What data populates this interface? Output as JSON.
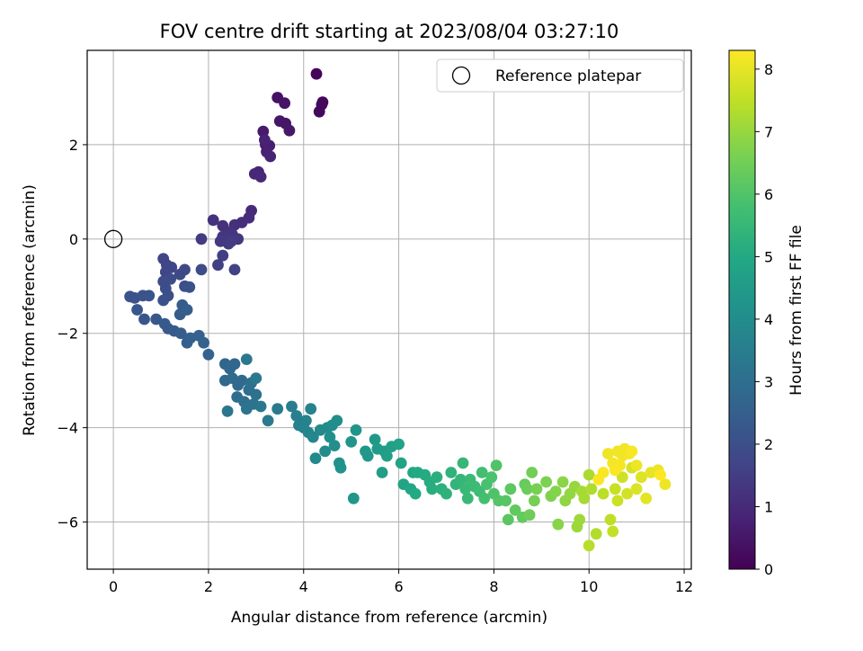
{
  "chart_data": {
    "type": "scatter",
    "title": "FOV centre drift starting at 2023/08/04 03:27:10",
    "xlabel": "Angular distance from reference (arcmin)",
    "ylabel": "Rotation from reference (arcmin)",
    "xlim": [
      -0.55,
      12.15
    ],
    "ylim": [
      -7.0,
      4.0
    ],
    "xticks": [
      0,
      2,
      4,
      6,
      8,
      10,
      12
    ],
    "yticks": [
      -6,
      -4,
      -2,
      0,
      2
    ],
    "grid": true,
    "legend": {
      "placement": "top-right",
      "entries": [
        "Reference platepar"
      ]
    },
    "reference_point": {
      "x": 0,
      "y": 0,
      "label": "Reference platepar"
    },
    "colorbar": {
      "label": "Hours from first FF file",
      "range": [
        0,
        8.3
      ],
      "ticks": [
        0,
        1,
        2,
        3,
        4,
        5,
        6,
        7,
        8
      ],
      "colormap": "viridis"
    },
    "points": [
      [
        4.27,
        3.5,
        0.1
      ],
      [
        4.4,
        2.9,
        0.15
      ],
      [
        4.33,
        2.7,
        0.2
      ],
      [
        4.38,
        2.85,
        0.2
      ],
      [
        3.45,
        3.0,
        0.4
      ],
      [
        3.6,
        2.88,
        0.45
      ],
      [
        3.5,
        2.5,
        0.5
      ],
      [
        3.62,
        2.45,
        0.5
      ],
      [
        3.7,
        2.3,
        0.55
      ],
      [
        3.15,
        2.28,
        0.6
      ],
      [
        3.2,
        2.0,
        0.65
      ],
      [
        3.28,
        1.98,
        0.7
      ],
      [
        3.22,
        1.85,
        0.75
      ],
      [
        3.3,
        1.75,
        0.8
      ],
      [
        3.18,
        2.1,
        0.8
      ],
      [
        3.05,
        1.42,
        0.85
      ],
      [
        2.97,
        1.38,
        0.9
      ],
      [
        3.1,
        1.32,
        0.95
      ],
      [
        2.9,
        0.6,
        1.0
      ],
      [
        2.85,
        0.45,
        1.05
      ],
      [
        2.7,
        0.35,
        1.1
      ],
      [
        2.55,
        0.3,
        1.15
      ],
      [
        2.3,
        0.28,
        1.2
      ],
      [
        2.1,
        0.4,
        1.2
      ],
      [
        2.45,
        0.15,
        1.25
      ],
      [
        2.3,
        0.05,
        1.3
      ],
      [
        2.5,
        0.1,
        1.3
      ],
      [
        2.62,
        0.0,
        1.35
      ],
      [
        2.25,
        -0.05,
        1.4
      ],
      [
        2.42,
        -0.1,
        1.4
      ],
      [
        1.85,
        0.0,
        1.45
      ],
      [
        2.48,
        -0.05,
        1.45
      ],
      [
        2.3,
        -0.35,
        1.5
      ],
      [
        2.2,
        -0.55,
        1.55
      ],
      [
        2.55,
        -0.65,
        1.6
      ],
      [
        1.05,
        -0.42,
        1.65
      ],
      [
        1.12,
        -0.55,
        1.7
      ],
      [
        1.22,
        -0.6,
        1.75
      ],
      [
        1.1,
        -0.7,
        1.75
      ],
      [
        1.5,
        -0.65,
        1.8
      ],
      [
        1.4,
        -0.75,
        1.85
      ],
      [
        1.2,
        -0.85,
        1.9
      ],
      [
        1.05,
        -0.9,
        1.9
      ],
      [
        1.85,
        -0.65,
        1.95
      ],
      [
        1.1,
        -1.05,
        1.95
      ],
      [
        1.5,
        -1.0,
        2.0
      ],
      [
        1.15,
        -1.2,
        2.0
      ],
      [
        1.05,
        -1.3,
        2.05
      ],
      [
        1.6,
        -1.02,
        2.05
      ],
      [
        0.35,
        -1.22,
        2.1
      ],
      [
        0.45,
        -1.25,
        2.1
      ],
      [
        0.62,
        -1.2,
        2.15
      ],
      [
        0.75,
        -1.2,
        2.15
      ],
      [
        0.5,
        -1.5,
        2.2
      ],
      [
        0.65,
        -1.7,
        2.2
      ],
      [
        0.9,
        -1.7,
        2.25
      ],
      [
        1.08,
        -1.8,
        2.3
      ],
      [
        1.15,
        -1.9,
        2.3
      ],
      [
        1.28,
        -1.95,
        2.35
      ],
      [
        1.4,
        -1.6,
        2.4
      ],
      [
        1.45,
        -1.4,
        2.4
      ],
      [
        1.55,
        -1.5,
        2.45
      ],
      [
        1.42,
        -2.0,
        2.45
      ],
      [
        1.55,
        -2.2,
        2.5
      ],
      [
        1.62,
        -2.1,
        2.55
      ],
      [
        1.8,
        -2.05,
        2.55
      ],
      [
        1.9,
        -2.2,
        2.6
      ],
      [
        2.0,
        -2.45,
        2.65
      ],
      [
        2.35,
        -2.65,
        2.7
      ],
      [
        2.45,
        -2.75,
        2.75
      ],
      [
        2.55,
        -2.65,
        2.75
      ],
      [
        2.35,
        -3.0,
        2.8
      ],
      [
        2.5,
        -2.95,
        2.85
      ],
      [
        2.62,
        -3.1,
        2.9
      ],
      [
        2.7,
        -3.0,
        2.9
      ],
      [
        2.6,
        -3.35,
        2.95
      ],
      [
        2.85,
        -3.2,
        3.0
      ],
      [
        2.75,
        -3.45,
        3.05
      ],
      [
        2.9,
        -3.05,
        3.1
      ],
      [
        3.0,
        -3.3,
        3.1
      ],
      [
        2.95,
        -3.5,
        3.15
      ],
      [
        2.8,
        -3.6,
        3.2
      ],
      [
        3.1,
        -3.55,
        3.25
      ],
      [
        2.4,
        -3.65,
        3.25
      ],
      [
        2.8,
        -2.55,
        3.3
      ],
      [
        3.25,
        -3.85,
        3.35
      ],
      [
        3.0,
        -2.95,
        3.35
      ],
      [
        3.45,
        -3.6,
        3.4
      ],
      [
        3.75,
        -3.55,
        3.5
      ],
      [
        3.85,
        -3.75,
        3.55
      ],
      [
        3.9,
        -3.95,
        3.6
      ],
      [
        4.0,
        -4.0,
        3.65
      ],
      [
        4.05,
        -3.85,
        3.7
      ],
      [
        4.15,
        -3.6,
        3.7
      ],
      [
        4.1,
        -4.1,
        3.75
      ],
      [
        4.2,
        -4.2,
        3.8
      ],
      [
        4.35,
        -4.05,
        3.85
      ],
      [
        4.25,
        -4.65,
        3.9
      ],
      [
        4.45,
        -4.5,
        3.95
      ],
      [
        4.5,
        -4.0,
        3.95
      ],
      [
        4.6,
        -3.95,
        4.0
      ],
      [
        4.7,
        -3.85,
        4.05
      ],
      [
        4.55,
        -4.2,
        4.1
      ],
      [
        4.65,
        -4.38,
        4.1
      ],
      [
        4.75,
        -4.75,
        4.15
      ],
      [
        4.78,
        -4.85,
        4.2
      ],
      [
        5.0,
        -4.3,
        4.25
      ],
      [
        5.1,
        -4.05,
        4.3
      ],
      [
        5.05,
        -5.5,
        4.35
      ],
      [
        5.3,
        -4.5,
        4.35
      ],
      [
        5.35,
        -4.6,
        4.4
      ],
      [
        5.5,
        -4.25,
        4.45
      ],
      [
        5.55,
        -4.45,
        4.5
      ],
      [
        5.7,
        -4.5,
        4.55
      ],
      [
        5.65,
        -4.95,
        4.6
      ],
      [
        5.85,
        -4.4,
        4.65
      ],
      [
        5.75,
        -4.6,
        4.7
      ],
      [
        6.0,
        -4.35,
        4.75
      ],
      [
        6.05,
        -4.75,
        4.8
      ],
      [
        6.1,
        -5.2,
        4.85
      ],
      [
        6.25,
        -5.3,
        4.9
      ],
      [
        6.3,
        -4.95,
        4.95
      ],
      [
        6.35,
        -5.4,
        5.0
      ],
      [
        6.4,
        -4.95,
        5.0
      ],
      [
        6.55,
        -5.0,
        5.05
      ],
      [
        6.65,
        -5.15,
        5.1
      ],
      [
        6.7,
        -5.3,
        5.15
      ],
      [
        6.8,
        -5.05,
        5.2
      ],
      [
        6.9,
        -5.3,
        5.25
      ],
      [
        7.0,
        -5.4,
        5.3
      ],
      [
        7.1,
        -4.95,
        5.35
      ],
      [
        7.2,
        -5.2,
        5.4
      ],
      [
        7.3,
        -5.1,
        5.45
      ],
      [
        7.35,
        -4.75,
        5.5
      ],
      [
        7.4,
        -5.3,
        5.55
      ],
      [
        7.45,
        -5.5,
        5.55
      ],
      [
        7.5,
        -5.1,
        5.6
      ],
      [
        7.6,
        -5.25,
        5.65
      ],
      [
        7.7,
        -5.35,
        5.7
      ],
      [
        7.75,
        -4.95,
        5.75
      ],
      [
        7.8,
        -5.5,
        5.8
      ],
      [
        7.85,
        -5.2,
        5.85
      ],
      [
        7.95,
        -5.05,
        5.9
      ],
      [
        8.0,
        -5.4,
        5.95
      ],
      [
        8.05,
        -4.8,
        6.0
      ],
      [
        8.1,
        -5.55,
        6.05
      ],
      [
        8.25,
        -5.55,
        6.1
      ],
      [
        8.3,
        -5.95,
        6.15
      ],
      [
        8.35,
        -5.3,
        6.2
      ],
      [
        8.45,
        -5.75,
        6.25
      ],
      [
        8.6,
        -5.9,
        6.3
      ],
      [
        8.65,
        -5.2,
        6.35
      ],
      [
        8.7,
        -5.3,
        6.4
      ],
      [
        8.75,
        -5.85,
        6.45
      ],
      [
        8.8,
        -4.95,
        6.5
      ],
      [
        8.85,
        -5.55,
        6.55
      ],
      [
        8.9,
        -5.3,
        6.6
      ],
      [
        9.1,
        -5.15,
        6.65
      ],
      [
        9.2,
        -5.45,
        6.7
      ],
      [
        9.3,
        -5.35,
        6.75
      ],
      [
        9.35,
        -6.05,
        6.8
      ],
      [
        9.45,
        -5.15,
        6.85
      ],
      [
        9.5,
        -5.55,
        6.9
      ],
      [
        9.6,
        -5.4,
        6.95
      ],
      [
        9.7,
        -5.25,
        7.0
      ],
      [
        9.75,
        -6.1,
        7.05
      ],
      [
        9.8,
        -5.95,
        7.1
      ],
      [
        9.85,
        -5.35,
        7.15
      ],
      [
        9.9,
        -5.5,
        7.2
      ],
      [
        10.0,
        -5.0,
        7.25
      ],
      [
        10.05,
        -5.3,
        7.3
      ],
      [
        10.15,
        -6.25,
        7.35
      ],
      [
        10.0,
        -6.5,
        7.4
      ],
      [
        10.3,
        -5.4,
        7.45
      ],
      [
        10.45,
        -5.95,
        7.5
      ],
      [
        10.5,
        -6.2,
        7.55
      ],
      [
        10.55,
        -5.3,
        7.6
      ],
      [
        10.6,
        -5.55,
        7.65
      ],
      [
        10.7,
        -5.05,
        7.7
      ],
      [
        10.8,
        -5.4,
        7.75
      ],
      [
        10.9,
        -4.85,
        7.8
      ],
      [
        11.0,
        -5.3,
        7.85
      ],
      [
        11.1,
        -5.05,
        7.9
      ],
      [
        11.2,
        -5.5,
        7.95
      ],
      [
        11.3,
        -4.95,
        8.0
      ],
      [
        11.45,
        -4.9,
        8.05
      ],
      [
        11.6,
        -5.2,
        8.1
      ],
      [
        11.0,
        -4.8,
        8.1
      ],
      [
        10.4,
        -4.55,
        8.1
      ],
      [
        10.6,
        -4.5,
        8.15
      ],
      [
        10.7,
        -4.6,
        8.15
      ],
      [
        10.75,
        -4.45,
        8.15
      ],
      [
        10.85,
        -4.55,
        8.2
      ],
      [
        10.5,
        -4.75,
        8.2
      ],
      [
        10.65,
        -4.8,
        8.2
      ],
      [
        10.9,
        -4.5,
        8.25
      ],
      [
        10.55,
        -4.9,
        8.25
      ],
      [
        10.3,
        -4.95,
        8.25
      ],
      [
        10.2,
        -5.1,
        8.25
      ],
      [
        11.5,
        -5.0,
        8.3
      ]
    ]
  }
}
